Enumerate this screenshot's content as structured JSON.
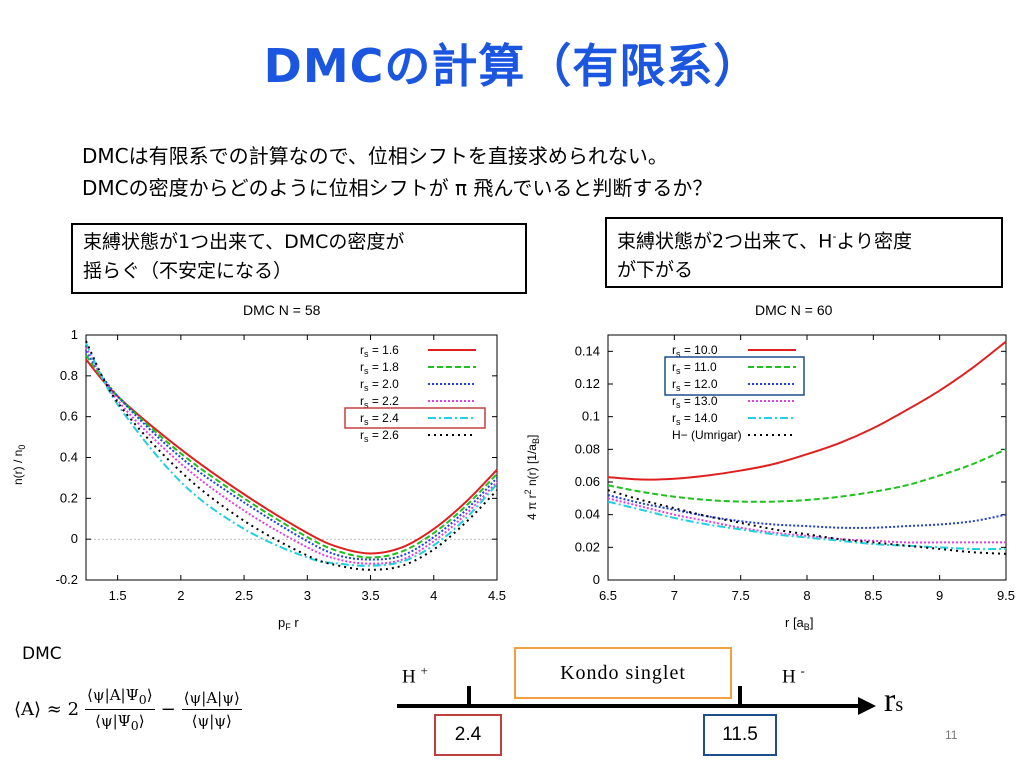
{
  "slide": {
    "title": "DMCの計算（有限系）",
    "intro_line1": "DMCは有限系での計算なので、位相シフトを直接求められない。",
    "intro_line2": "DMCの密度からどのように位相シフトが π 飛んでいると判断するか？",
    "note_left_line1": "束縛状態が1つ出来て、DMCの密度が",
    "note_left_line2": "揺らぐ（不安定になる）",
    "note_right_pre": "束縛状態が2つ出来て、H",
    "note_right_sup": "-",
    "note_right_post": "より密度",
    "note_right_line2": "が下がる",
    "formula_label": "DMC",
    "page_number": "11"
  },
  "scale": {
    "h_plus": "H",
    "h_plus_sup": "+",
    "h_minus": "H",
    "h_minus_sup": "-",
    "kondo_label": "Kondo singlet",
    "axis_symbol": "r",
    "axis_sub": "s",
    "left_value": "2.4",
    "right_value": "11.5",
    "left_box_color": "#c04040",
    "right_box_color": "#1f4f8a",
    "kondo_box_color": "#f0a040"
  },
  "chart_data": [
    {
      "type": "line",
      "title": "DMC   N = 58",
      "xlabel": "pF r",
      "ylabel": "n(r) / n0",
      "xlim": [
        1.25,
        4.5
      ],
      "ylim": [
        -0.2,
        1.0
      ],
      "xticks": [
        "1.5",
        "2",
        "2.5",
        "3",
        "3.5",
        "4",
        "4.5"
      ],
      "yticks": [
        "-0.2",
        "0",
        "0.2",
        "0.4",
        "0.6",
        "0.8",
        "1"
      ],
      "legend_position": "top-right",
      "highlighted_legend": "rs = 2.4",
      "series": [
        {
          "name": "rs = 1.6",
          "color": "#e02020",
          "dash": "",
          "x": [
            1.25,
            1.5,
            2.0,
            2.5,
            3.0,
            3.25,
            3.5,
            3.75,
            4.0,
            4.25,
            4.5
          ],
          "y": [
            0.88,
            0.7,
            0.44,
            0.22,
            0.03,
            -0.04,
            -0.07,
            -0.04,
            0.05,
            0.18,
            0.34
          ]
        },
        {
          "name": "rs = 1.8",
          "color": "#20c020",
          "dash": "6,3",
          "x": [
            1.25,
            1.5,
            2.0,
            2.5,
            3.0,
            3.25,
            3.5,
            3.75,
            4.0,
            4.25,
            4.5
          ],
          "y": [
            0.9,
            0.7,
            0.42,
            0.2,
            0.01,
            -0.06,
            -0.09,
            -0.06,
            0.03,
            0.16,
            0.32
          ]
        },
        {
          "name": "rs = 2.0",
          "color": "#2040e0",
          "dash": "2,2",
          "x": [
            1.25,
            1.5,
            2.0,
            2.5,
            3.0,
            3.25,
            3.5,
            3.75,
            4.0,
            4.25,
            4.5
          ],
          "y": [
            0.92,
            0.7,
            0.4,
            0.18,
            -0.01,
            -0.08,
            -0.1,
            -0.08,
            0.01,
            0.14,
            0.3
          ]
        },
        {
          "name": "rs = 2.2",
          "color": "#e040e0",
          "dash": "2,2",
          "x": [
            1.25,
            1.5,
            2.0,
            2.5,
            3.0,
            3.25,
            3.5,
            3.75,
            4.0,
            4.25,
            4.5
          ],
          "y": [
            0.94,
            0.68,
            0.37,
            0.14,
            -0.04,
            -0.1,
            -0.12,
            -0.1,
            -0.01,
            0.12,
            0.28
          ]
        },
        {
          "name": "rs = 2.4",
          "color": "#20d0e0",
          "dash": "8,3,2,3",
          "x": [
            1.25,
            1.5,
            2.0,
            2.5,
            3.0,
            3.25,
            3.5,
            3.75,
            4.0,
            4.25,
            4.5
          ],
          "y": [
            0.96,
            0.66,
            0.28,
            0.05,
            -0.09,
            -0.12,
            -0.13,
            -0.11,
            -0.03,
            0.1,
            0.27
          ]
        },
        {
          "name": "rs = 2.6",
          "color": "#000000",
          "dash": "2,4",
          "x": [
            1.25,
            1.5,
            2.0,
            2.5,
            3.0,
            3.25,
            3.5,
            3.75,
            4.0,
            4.25,
            4.5
          ],
          "y": [
            0.97,
            0.67,
            0.33,
            0.09,
            -0.08,
            -0.13,
            -0.15,
            -0.13,
            -0.05,
            0.08,
            0.24
          ]
        }
      ]
    },
    {
      "type": "line",
      "title": "DMC   N = 60",
      "xlabel": "r  [aB]",
      "ylabel": "4 π r2 n(r)  [1/aB]",
      "xlim": [
        6.5,
        9.5
      ],
      "ylim": [
        0,
        0.15
      ],
      "xticks": [
        "6.5",
        "7",
        "7.5",
        "8",
        "8.5",
        "9",
        "9.5"
      ],
      "yticks": [
        "0",
        "0.02",
        "0.04",
        "0.06",
        "0.08",
        "0.1",
        "0.12",
        "0.14"
      ],
      "legend_position": "top-left",
      "highlighted_legend": "rs = 11.0, rs = 12.0",
      "series": [
        {
          "name": "rs = 10.0",
          "color": "#e02020",
          "dash": "",
          "x": [
            6.5,
            6.75,
            7.0,
            7.25,
            7.5,
            7.75,
            8.0,
            8.25,
            8.5,
            8.75,
            9.0,
            9.25,
            9.5
          ],
          "y": [
            0.063,
            0.0615,
            0.062,
            0.064,
            0.067,
            0.071,
            0.077,
            0.084,
            0.093,
            0.104,
            0.116,
            0.13,
            0.146
          ]
        },
        {
          "name": "rs = 11.0",
          "color": "#20c020",
          "dash": "6,3",
          "x": [
            6.5,
            6.75,
            7.0,
            7.25,
            7.5,
            7.75,
            8.0,
            8.25,
            8.5,
            8.75,
            9.0,
            9.25,
            9.5
          ],
          "y": [
            0.058,
            0.054,
            0.051,
            0.049,
            0.048,
            0.048,
            0.049,
            0.051,
            0.054,
            0.058,
            0.064,
            0.071,
            0.08
          ]
        },
        {
          "name": "rs = 12.0",
          "color": "#2040e0",
          "dash": "2,2",
          "x": [
            6.5,
            6.75,
            7.0,
            7.25,
            7.5,
            7.75,
            8.0,
            8.25,
            8.5,
            8.75,
            9.0,
            9.25,
            9.5
          ],
          "y": [
            0.052,
            0.047,
            0.043,
            0.039,
            0.036,
            0.034,
            0.033,
            0.032,
            0.032,
            0.033,
            0.034,
            0.036,
            0.04
          ]
        },
        {
          "name": "rs = 13.0",
          "color": "#e040e0",
          "dash": "2,2",
          "x": [
            6.5,
            6.75,
            7.0,
            7.25,
            7.5,
            7.75,
            8.0,
            8.25,
            8.5,
            8.75,
            9.0,
            9.25,
            9.5
          ],
          "y": [
            0.05,
            0.045,
            0.04,
            0.036,
            0.032,
            0.029,
            0.027,
            0.025,
            0.024,
            0.023,
            0.023,
            0.023,
            0.023
          ]
        },
        {
          "name": "rs = 14.0",
          "color": "#20d0e0",
          "dash": "8,3,2,3",
          "x": [
            6.5,
            6.75,
            7.0,
            7.25,
            7.5,
            7.75,
            8.0,
            8.25,
            8.5,
            8.75,
            9.0,
            9.25,
            9.5
          ],
          "y": [
            0.048,
            0.043,
            0.038,
            0.034,
            0.031,
            0.028,
            0.026,
            0.024,
            0.022,
            0.021,
            0.02,
            0.019,
            0.019
          ]
        },
        {
          "name": "H−  (Umrigar)",
          "color": "#000000",
          "dash": "2,4",
          "x": [
            6.5,
            6.75,
            7.0,
            7.25,
            7.5,
            7.75,
            8.0,
            8.25,
            8.5,
            8.75,
            9.0,
            9.25,
            9.5
          ],
          "y": [
            0.055,
            0.049,
            0.044,
            0.039,
            0.035,
            0.031,
            0.028,
            0.025,
            0.023,
            0.021,
            0.019,
            0.017,
            0.016
          ]
        }
      ]
    }
  ]
}
